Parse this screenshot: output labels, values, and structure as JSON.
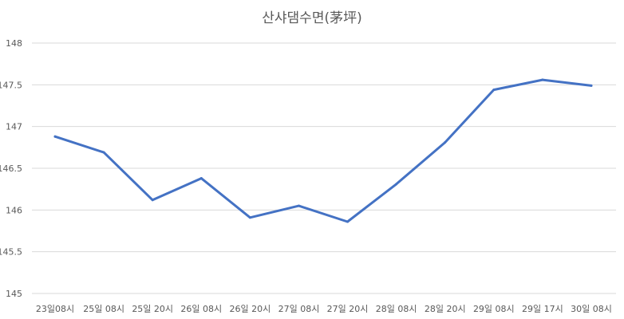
{
  "chart_data": {
    "type": "line",
    "title": "산샤댐수면(茅坪)",
    "xlabel": "",
    "ylabel": "",
    "ylim": [
      145,
      148
    ],
    "yticks": [
      "145",
      "145.5",
      "146",
      "146.5",
      "147",
      "147.5",
      "148"
    ],
    "categories": [
      "23일08시",
      "25일 08시",
      "25일 20시",
      "26일 08시",
      "26일 20시",
      "27일 08시",
      "27일 20시",
      "28일 08시",
      "28일 20시",
      "29일 08시",
      "29일 17시",
      "30일 08시"
    ],
    "series": [
      {
        "values": [
          146.88,
          146.69,
          146.12,
          146.38,
          145.91,
          146.05,
          145.86,
          146.31,
          146.81,
          147.44,
          147.56,
          147.49
        ]
      }
    ],
    "grid": true,
    "legend": "none",
    "colors": {
      "line": "#4472c4",
      "grid": "#d9d9d9",
      "text": "#595959"
    }
  }
}
